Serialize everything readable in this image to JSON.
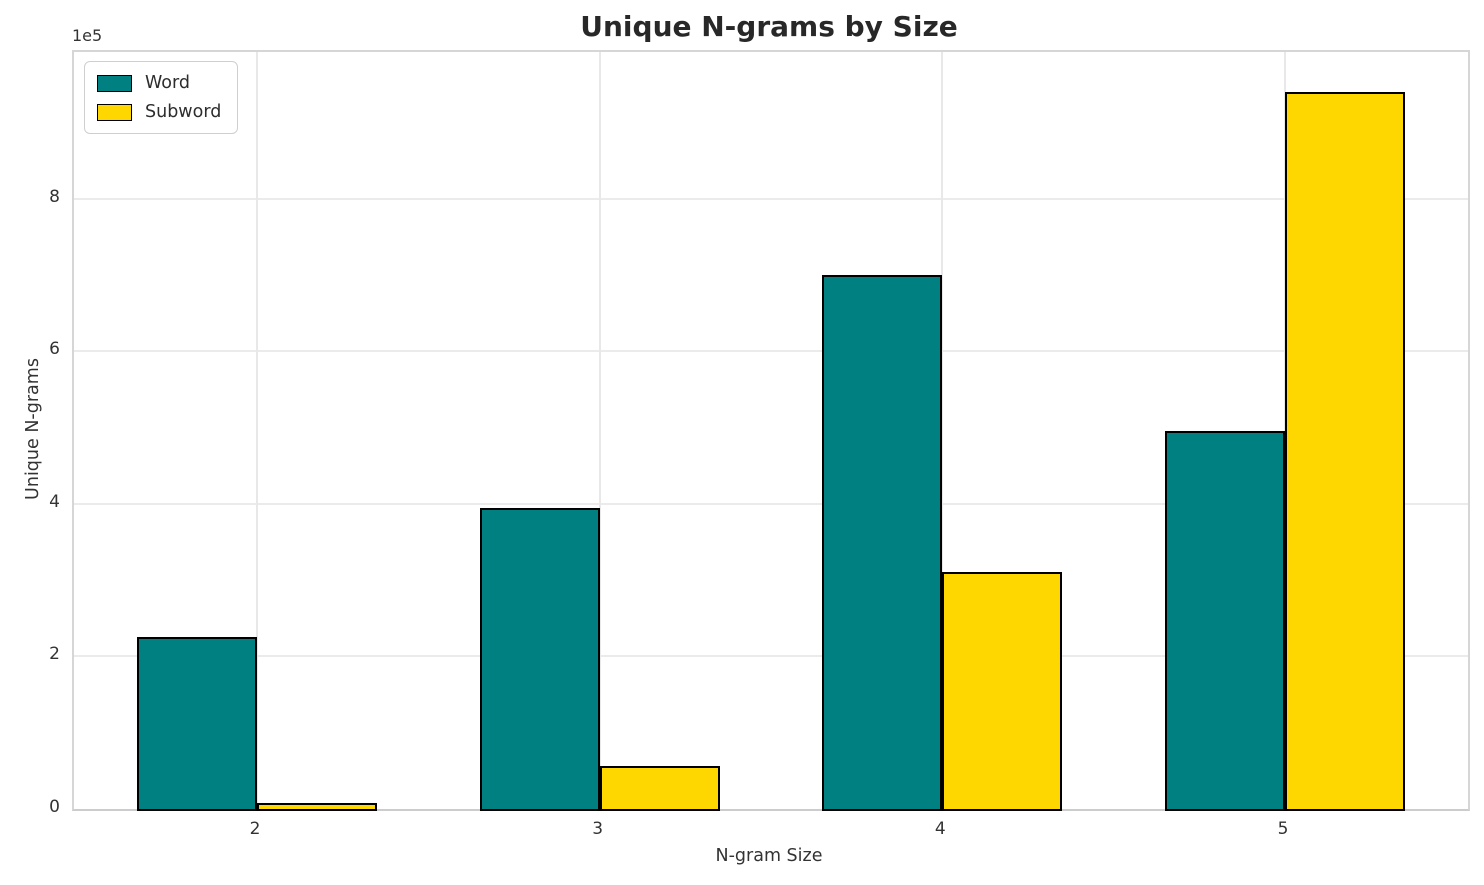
{
  "chart_data": {
    "type": "bar",
    "title": "Unique N-grams by Size",
    "xlabel": "N-gram Size",
    "ylabel": "Unique N-grams",
    "offset_label": "1e5",
    "categories": [
      "2",
      "3",
      "4",
      "5"
    ],
    "series": [
      {
        "name": "Word",
        "color": "#008080",
        "values": [
          225000,
          395000,
          700000,
          495000
        ]
      },
      {
        "name": "Subword",
        "color": "#FFD700",
        "values": [
          8000,
          57000,
          310000,
          940000
        ]
      }
    ],
    "bar_edge_color": "#000000",
    "ylim": [
      0,
      992000
    ],
    "yticks": [
      0,
      200000,
      400000,
      600000,
      800000
    ],
    "ytick_labels": [
      "0",
      "2",
      "4",
      "6",
      "8"
    ],
    "grid": true,
    "legend_position": "upper left"
  }
}
